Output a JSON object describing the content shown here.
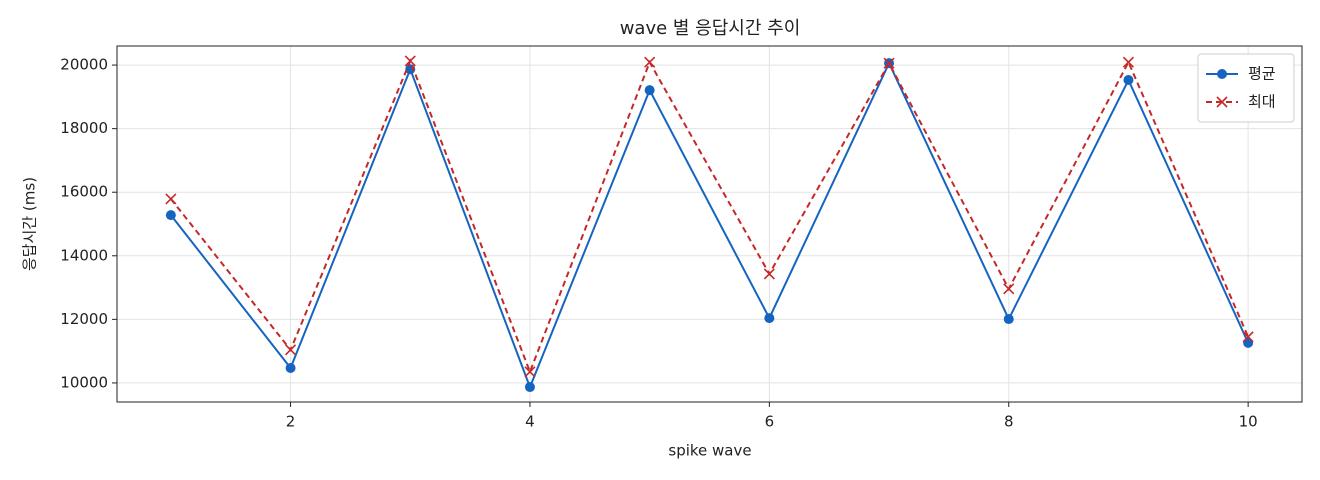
{
  "chart_data": {
    "type": "line",
    "title": "wave 별 응답시간 추이",
    "xlabel": "spike wave",
    "ylabel": "응답시간 (ms)",
    "x": [
      1,
      2,
      3,
      4,
      5,
      6,
      7,
      8,
      9,
      10
    ],
    "series": [
      {
        "name": "평균",
        "color": "#1565c0",
        "marker": "o",
        "linestyle": "solid",
        "values": [
          15280,
          10470,
          19870,
          9870,
          19210,
          12040,
          20060,
          12010,
          19530,
          11260
        ]
      },
      {
        "name": "최대",
        "color": "#c62828",
        "marker": "x",
        "linestyle": "dashed",
        "values": [
          15790,
          11040,
          20130,
          10350,
          20090,
          13430,
          20060,
          12960,
          20090,
          11450
        ]
      }
    ],
    "xlim": [
      0.55,
      10.45
    ],
    "xticks": [
      2,
      4,
      6,
      8,
      10
    ],
    "ylim": [
      9400,
      20600
    ],
    "yticks": [
      10000,
      12000,
      14000,
      16000,
      18000,
      20000
    ],
    "grid": true,
    "legend": "upper right"
  }
}
